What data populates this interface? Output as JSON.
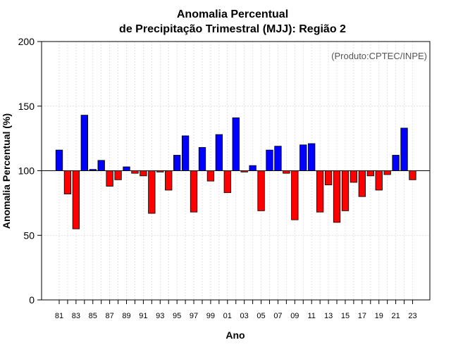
{
  "chart_data": {
    "type": "bar",
    "title": "Anomalia Percentual",
    "subtitle": "de Precipitação Trimestral (MJJ): Região 2",
    "xlabel": "Ano",
    "ylabel": "Anomalia Percentual (%)",
    "source_note": "(Produto:CPTEC/INPE)",
    "ylim": [
      0,
      200
    ],
    "yticks": [
      0,
      50,
      100,
      150,
      200
    ],
    "baseline": 100,
    "grid": true,
    "colors": {
      "above": "#0000ff",
      "below": "#ff0000",
      "baseline": "#000000",
      "grid": "#d8d8d8"
    },
    "xtick_labels": [
      "81",
      "83",
      "85",
      "87",
      "89",
      "91",
      "93",
      "95",
      "97",
      "99",
      "01",
      "03",
      "05",
      "07",
      "09",
      "11",
      "13",
      "15",
      "17",
      "19",
      "21",
      "23"
    ],
    "categories": [
      "81",
      "82",
      "83",
      "84",
      "85",
      "86",
      "87",
      "88",
      "89",
      "90",
      "91",
      "92",
      "93",
      "94",
      "95",
      "96",
      "97",
      "98",
      "99",
      "00",
      "01",
      "02",
      "03",
      "04",
      "05",
      "06",
      "07",
      "08",
      "09",
      "10",
      "11",
      "12",
      "13",
      "14",
      "15",
      "16",
      "17",
      "18",
      "19",
      "20",
      "21",
      "22",
      "23"
    ],
    "values": [
      116,
      82,
      55,
      143,
      101,
      108,
      88,
      93,
      103,
      98,
      96,
      67,
      99,
      85,
      112,
      127,
      68,
      118,
      92,
      128,
      83,
      141,
      99,
      104,
      69,
      116,
      119,
      98,
      62,
      120,
      121,
      68,
      89,
      60,
      69,
      91,
      80,
      96,
      85,
      97,
      112,
      133,
      93
    ]
  }
}
